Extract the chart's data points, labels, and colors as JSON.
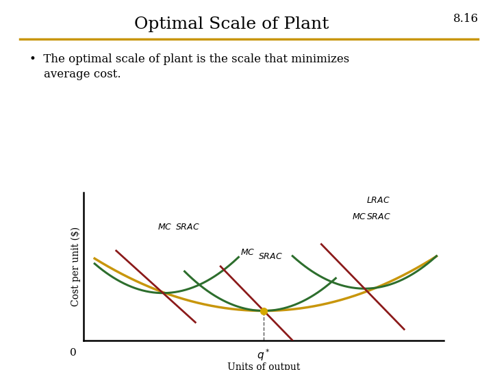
{
  "title": "Optimal Scale of Plant",
  "slide_number": "8.16",
  "bullet_line1": "•  The optimal scale of plant is the scale that minimizes",
  "bullet_line2": "    average cost.",
  "xlabel": "Units of output",
  "ylabel": "Cost per unit ($)",
  "x0_label": "0",
  "qstar_label": "q*",
  "bg_color": "#ffffff",
  "title_color": "#000000",
  "divider_color": "#c8960c",
  "lrac_color": "#c8960c",
  "srac_color": "#2d6e2d",
  "mc_color": "#8b1a1a",
  "dot_color": "#d4a800",
  "font_family": "DejaVu Serif"
}
